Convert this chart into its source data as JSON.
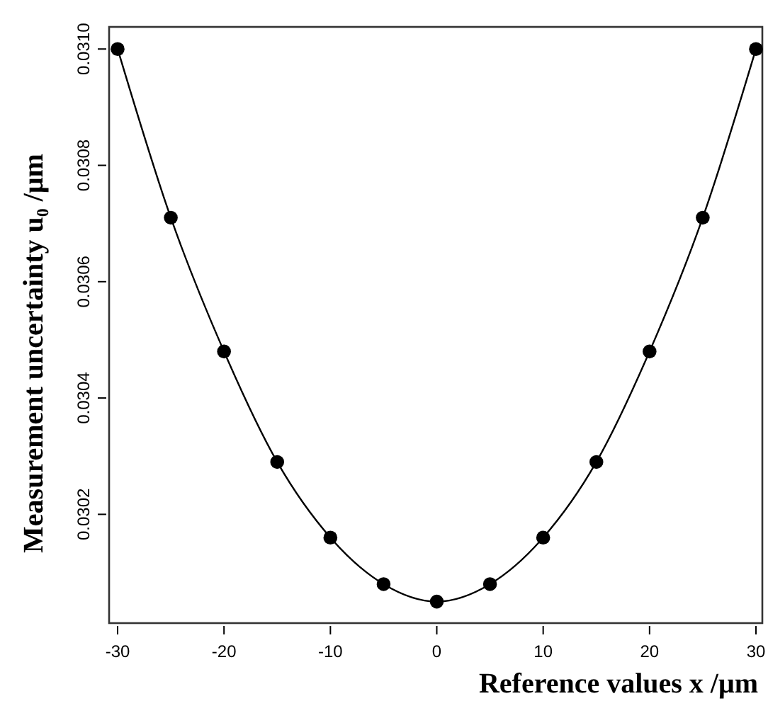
{
  "chart_data": {
    "type": "line",
    "xlabel": "Reference values  x /μm",
    "ylabel": "Measurement uncertainty u₀ /μm",
    "x": [
      -30,
      -25,
      -20,
      -15,
      -10,
      -5,
      0,
      5,
      10,
      15,
      20,
      25,
      30
    ],
    "series": [
      {
        "color": "#000000",
        "values": [
          0.031,
          0.03071,
          0.03048,
          0.03029,
          0.03016,
          0.03008,
          0.03005,
          0.03008,
          0.03016,
          0.03029,
          0.03048,
          0.03071,
          0.031
        ]
      }
    ],
    "xlim": [
      -30.8,
      30.6
    ],
    "ylim": [
      0.030013,
      0.031038
    ],
    "xticks": [
      -30,
      -20,
      -10,
      0,
      10,
      20,
      30
    ],
    "yticks": [
      {
        "value": 0.0302,
        "label": "0.0302"
      },
      {
        "value": 0.0304,
        "label": "0.0304"
      },
      {
        "value": 0.0306,
        "label": "0.0306"
      },
      {
        "value": 0.0308,
        "label": "0.0308"
      },
      {
        "value": 0.031,
        "label": "0.0310"
      }
    ],
    "marker": "circle",
    "line_style": "solid"
  }
}
